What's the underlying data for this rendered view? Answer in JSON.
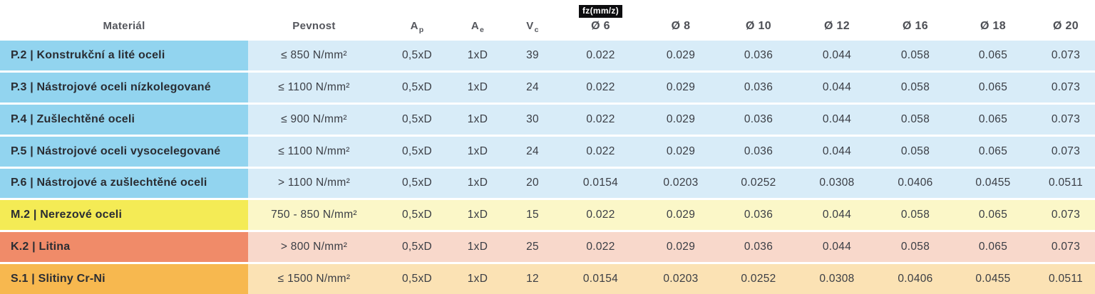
{
  "table": {
    "headers": {
      "material": "Materiál",
      "pevnost": "Pevnost",
      "ap": {
        "base": "A",
        "sub": "p"
      },
      "ae": {
        "base": "A",
        "sub": "e"
      },
      "vc": {
        "base": "V",
        "sub": "c"
      },
      "fz_label": "fz(mm/z)",
      "diameters": [
        "Ø 6",
        "Ø 8",
        "Ø 10",
        "Ø 12",
        "Ø 16",
        "Ø 18",
        "Ø 20"
      ]
    },
    "rows": [
      {
        "material": "P.2 | Konstrukční a lité oceli",
        "pevnost": "≤ 850 N/mm²",
        "ap": "0,5xD",
        "ae": "1xD",
        "vc": "39",
        "fz": [
          "0.022",
          "0.029",
          "0.036",
          "0.044",
          "0.058",
          "0.065",
          "0.073"
        ],
        "group": "p"
      },
      {
        "material": "P.3 | Nástrojové oceli nízkolegované",
        "pevnost": "≤ 1100 N/mm²",
        "ap": "0,5xD",
        "ae": "1xD",
        "vc": "24",
        "fz": [
          "0.022",
          "0.029",
          "0.036",
          "0.044",
          "0.058",
          "0.065",
          "0.073"
        ],
        "group": "p"
      },
      {
        "material": "P.4 | Zušlechtěné oceli",
        "pevnost": "≤ 900 N/mm²",
        "ap": "0,5xD",
        "ae": "1xD",
        "vc": "30",
        "fz": [
          "0.022",
          "0.029",
          "0.036",
          "0.044",
          "0.058",
          "0.065",
          "0.073"
        ],
        "group": "p"
      },
      {
        "material": "P.5 | Nástrojové oceli vysocelegované",
        "pevnost": "≤ 1100 N/mm²",
        "ap": "0,5xD",
        "ae": "1xD",
        "vc": "24",
        "fz": [
          "0.022",
          "0.029",
          "0.036",
          "0.044",
          "0.058",
          "0.065",
          "0.073"
        ],
        "group": "p"
      },
      {
        "material": "P.6 | Nástrojové a zušlechtěné oceli",
        "pevnost": "> 1100 N/mm²",
        "ap": "0,5xD",
        "ae": "1xD",
        "vc": "20",
        "fz": [
          "0.0154",
          "0.0203",
          "0.0252",
          "0.0308",
          "0.0406",
          "0.0455",
          "0.0511"
        ],
        "group": "p"
      },
      {
        "material": "M.2 | Nerezové oceli",
        "pevnost": "750 - 850 N/mm²",
        "ap": "0,5xD",
        "ae": "1xD",
        "vc": "15",
        "fz": [
          "0.022",
          "0.029",
          "0.036",
          "0.044",
          "0.058",
          "0.065",
          "0.073"
        ],
        "group": "m"
      },
      {
        "material": "K.2 | Litina",
        "pevnost": "> 800 N/mm²",
        "ap": "0,5xD",
        "ae": "1xD",
        "vc": "25",
        "fz": [
          "0.022",
          "0.029",
          "0.036",
          "0.044",
          "0.058",
          "0.065",
          "0.073"
        ],
        "group": "k"
      },
      {
        "material": "S.1 | Slitiny Cr-Ni",
        "pevnost": "≤ 1500 N/mm²",
        "ap": "0,5xD",
        "ae": "1xD",
        "vc": "12",
        "fz": [
          "0.0154",
          "0.0203",
          "0.0252",
          "0.0308",
          "0.0406",
          "0.0455",
          "0.0511"
        ],
        "group": "s"
      }
    ],
    "colors": {
      "p": {
        "label": "#92d4ef",
        "row": "#d8ecf8"
      },
      "m": {
        "label": "#f4eb55",
        "row": "#fbf7c8"
      },
      "k": {
        "label": "#f08b69",
        "row": "#f8d8cb"
      },
      "s": {
        "label": "#f7b84f",
        "row": "#fbe2b4"
      },
      "badge_bg": "#0d0d0f",
      "badge_text": "#ffffff"
    }
  }
}
